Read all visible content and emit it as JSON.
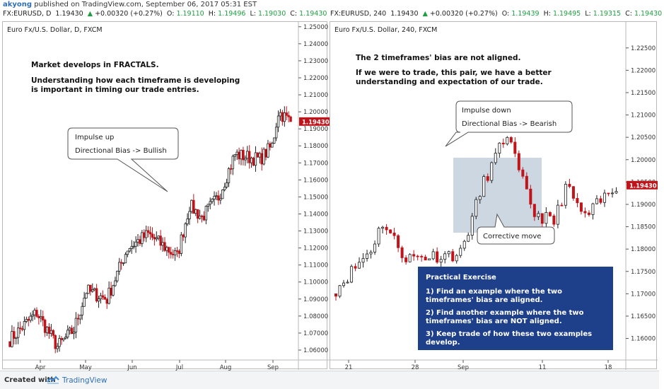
{
  "header": {
    "author": "akyong",
    "published": "published on TradingView.com, September 06, 2017 05:31 EST"
  },
  "footer": {
    "created_with": "Created with",
    "brand": "TradingView"
  },
  "colors": {
    "up": "#1f1f1f",
    "down": "#c0141b",
    "price_tag": "#c0141b",
    "exercise_bg": "#1e3f8a",
    "corrective_box": "#cdd7e2"
  },
  "chart_data": [
    {
      "type": "candlestick",
      "symbol_line": [
        "FX:EURUSD, D",
        "1.19430",
        "▲",
        "+0.00320 (+0.27%)",
        "O:",
        "1.19110",
        "H:",
        "1.19496",
        "L:",
        "1.19030",
        "C:",
        "1.19430"
      ],
      "title": "Euro Fx/U.S. Dollar, D, FXCM",
      "ylim": [
        1.055,
        1.252
      ],
      "yticks": [
        "1.25000",
        "1.24000",
        "1.23000",
        "1.22000",
        "1.21000",
        "1.20000",
        "1.19000",
        "1.18000",
        "1.17000",
        "1.16000",
        "1.15000",
        "1.14000",
        "1.13000",
        "1.12000",
        "1.11000",
        "1.10000",
        "1.09000",
        "1.08000",
        "1.07000",
        "1.06000"
      ],
      "last_price": "1.19430",
      "xticks": [
        "Apr",
        "May",
        "Jun",
        "Jul",
        "Aug",
        "Sep"
      ],
      "segments": [
        {
          "start": 1.065,
          "end": 1.082,
          "n": 14
        },
        {
          "start": 1.082,
          "end": 1.062,
          "n": 10
        },
        {
          "start": 1.062,
          "end": 1.072,
          "n": 8
        },
        {
          "start": 1.072,
          "end": 1.095,
          "n": 6
        },
        {
          "start": 1.095,
          "end": 1.09,
          "n": 10
        },
        {
          "start": 1.09,
          "end": 1.12,
          "n": 10
        },
        {
          "start": 1.12,
          "end": 1.128,
          "n": 10
        },
        {
          "start": 1.128,
          "end": 1.115,
          "n": 14
        },
        {
          "start": 1.115,
          "end": 1.145,
          "n": 6
        },
        {
          "start": 1.145,
          "end": 1.138,
          "n": 6
        },
        {
          "start": 1.138,
          "end": 1.15,
          "n": 8
        },
        {
          "start": 1.15,
          "end": 1.175,
          "n": 8
        },
        {
          "start": 1.175,
          "end": 1.172,
          "n": 12
        },
        {
          "start": 1.172,
          "end": 1.18,
          "n": 6
        },
        {
          "start": 1.18,
          "end": 1.2,
          "n": 3
        },
        {
          "start": 1.2,
          "end": 1.1943,
          "n": 6
        }
      ],
      "annotations": {
        "heading_1": "Market develops in FRACTALS.",
        "heading_2": "Understanding how each timeframe is developing",
        "heading_3": "is important in timing our trade entries.",
        "callout_1": "Impulse up",
        "callout_2": "Directional Bias -> Bullish"
      }
    },
    {
      "type": "candlestick",
      "symbol_line": [
        "FX:EURUSD, 240",
        "1.19430",
        "▲",
        "+0.00320 (+0.27%)",
        "O:",
        "1.19439",
        "H:",
        "1.19495",
        "L:",
        "1.19315",
        "C:",
        "1.19430"
      ],
      "title": "Euro Fx/U.S. Dollar, 240, FXCM",
      "ylim": [
        1.1555,
        1.2305
      ],
      "yticks": [
        "1.22500",
        "1.22000",
        "1.21500",
        "1.21000",
        "1.20500",
        "1.20000",
        "1.19500",
        "1.19000",
        "1.18500",
        "1.18000",
        "1.17500",
        "1.17000",
        "1.16500",
        "1.16000"
      ],
      "last_price": "1.19430",
      "xticks": [
        "21",
        "28",
        "Sep",
        "11",
        "18"
      ],
      "segments": [
        {
          "start": 1.17,
          "end": 1.18,
          "n": 10
        },
        {
          "start": 1.18,
          "end": 1.186,
          "n": 3
        },
        {
          "start": 1.186,
          "end": 1.178,
          "n": 6
        },
        {
          "start": 1.178,
          "end": 1.179,
          "n": 14
        },
        {
          "start": 1.179,
          "end": 1.195,
          "n": 6
        },
        {
          "start": 1.195,
          "end": 1.206,
          "n": 6
        },
        {
          "start": 1.206,
          "end": 1.197,
          "n": 3
        },
        {
          "start": 1.197,
          "end": 1.188,
          "n": 4
        },
        {
          "start": 1.188,
          "end": 1.186,
          "n": 5
        },
        {
          "start": 1.186,
          "end": 1.194,
          "n": 3
        },
        {
          "start": 1.194,
          "end": 1.187,
          "n": 5
        },
        {
          "start": 1.187,
          "end": 1.1943,
          "n": 8
        }
      ],
      "annotations": {
        "heading_1": "The 2 timeframes' bias are not aligned.",
        "heading_2": "If we were to trade, this pair, we have a better",
        "heading_3": "understanding and expectation of our trade.",
        "callout_1": "Impulse down",
        "callout_2": "Directional Bias -> Bearish",
        "callout_3": "Corrective move"
      },
      "exercise": {
        "title": "Practical Exercise",
        "lines": [
          "1) Find an example where the two",
          "timeframes' bias are aligned.",
          "2) Find another example where the two",
          "timeframes' bias are NOT aligned.",
          "3) Keep trade of how these two examples",
          "develop."
        ]
      }
    }
  ]
}
